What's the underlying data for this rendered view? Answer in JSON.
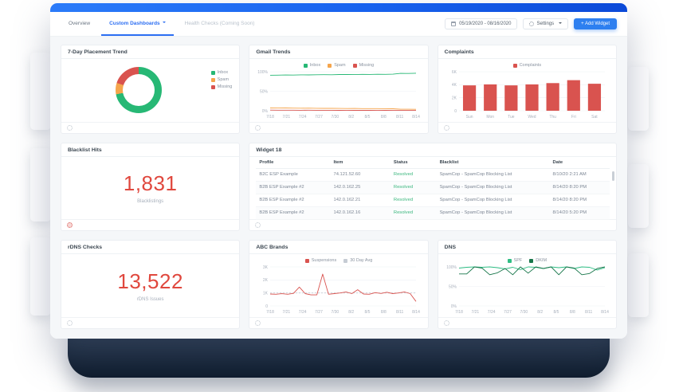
{
  "header": {
    "tabs": [
      {
        "label": "Overview",
        "active": false
      },
      {
        "label": "Custom Dashboards",
        "active": true,
        "has_dropdown": true
      },
      {
        "label": "Health Checks (Coming Soon)",
        "active": false
      }
    ],
    "date_range": "05/19/2020 - 08/16/2020",
    "settings_label": "Settings",
    "add_widget_label": "+ Add Widget"
  },
  "colors": {
    "brand_blue": "#1862ee",
    "button_blue": "#2d7ff0",
    "red": "#d9534f",
    "stat_red": "#e0483e",
    "green": "#27b875",
    "dark_green": "#17764a",
    "orange": "#f5a54c",
    "status_green": "#3bb77e"
  },
  "widgets": {
    "placement": {
      "title": "7-Day Placement Trend",
      "legend": [
        {
          "label": "Inbox",
          "color": "#27b875"
        },
        {
          "label": "Spam",
          "color": "#f5a54c"
        },
        {
          "label": "Missing",
          "color": "#d9534f"
        }
      ],
      "chart": {
        "type": "donut",
        "slices": [
          {
            "label": "Inbox",
            "value": 72,
            "color": "#27b875"
          },
          {
            "label": "Spam",
            "value": 8,
            "color": "#f5a54c"
          },
          {
            "label": "Missing",
            "value": 20,
            "color": "#d9534f"
          }
        ]
      }
    },
    "gmail": {
      "title": "Gmail Trends",
      "legend": [
        {
          "label": "Inbox",
          "color": "#27b875"
        },
        {
          "label": "Spam",
          "color": "#f5a54c"
        },
        {
          "label": "Missing",
          "color": "#d9534f"
        }
      ],
      "chart": {
        "type": "line",
        "x_labels": [
          "7/18",
          "7/21",
          "7/24",
          "7/27",
          "7/30",
          "8/2",
          "8/5",
          "8/8",
          "8/11",
          "8/14"
        ],
        "yticks": [
          "100%",
          "50%",
          "0%"
        ],
        "ylim": [
          0,
          100
        ],
        "series": [
          {
            "name": "Inbox",
            "color": "#27b875",
            "values": [
              91,
              91.3,
              91.6,
              91.4,
              92,
              91.8,
              92.2,
              92.5,
              92.3,
              92.8,
              93,
              92.7,
              93.2,
              93,
              93.4,
              93.2,
              93.6,
              95.8,
              95.5,
              96.2
            ]
          },
          {
            "name": "Spam",
            "color": "#f5a54c",
            "values": [
              7.2,
              7,
              7.1,
              6.8,
              6.6,
              6.8,
              6.4,
              6.2,
              6.3,
              6,
              5.8,
              6,
              5.6,
              5.5,
              5.6,
              5.3,
              5.2,
              3.8,
              3.9,
              3.6
            ]
          },
          {
            "name": "Missing",
            "color": "#d9534f",
            "values": [
              1.6,
              1.5,
              1.4,
              1.5,
              1.3,
              1.4,
              1.2,
              1.3,
              1.2,
              1.1,
              1.2,
              1,
              1.1,
              1,
              0.9,
              1,
              0.9,
              0.8,
              0.9,
              0.8
            ]
          }
        ]
      }
    },
    "complaints": {
      "title": "Complaints",
      "legend": [
        {
          "label": "Complaints",
          "color": "#d9534f"
        }
      ],
      "chart": {
        "type": "bar",
        "categories": [
          "Sun",
          "Mon",
          "Tue",
          "Wed",
          "Thu",
          "Fri",
          "Sat"
        ],
        "yticks": [
          "6K",
          "4K",
          "2K",
          "0"
        ],
        "ylim": [
          0,
          6
        ],
        "color": "#d9534f",
        "values": [
          3.9,
          4.05,
          3.9,
          4.05,
          4.25,
          4.7,
          4.15
        ]
      }
    },
    "blacklist": {
      "title": "Blacklist Hits",
      "value": "1,831",
      "label": "Blacklistings"
    },
    "table": {
      "title": "Widget 18",
      "columns": [
        "Profile",
        "Item",
        "Status",
        "Blacklist",
        "Date"
      ],
      "rows": [
        [
          "B2C ESP Example",
          "74.121.52.60",
          "Resolved",
          "SpamCop - SpamCop Blocking List",
          "8/10/20 2:21 AM"
        ],
        [
          "B2B ESP Example #2",
          "142.0.162.25",
          "Resolved",
          "SpamCop - SpamCop Blocking List",
          "8/14/20 8:20 PM"
        ],
        [
          "B2B ESP Example #2",
          "142.0.162.21",
          "Resolved",
          "SpamCop - SpamCop Blocking List",
          "8/14/20 8:20 PM"
        ],
        [
          "B2B ESP Example #2",
          "142.0.162.16",
          "Resolved",
          "SpamCop - SpamCop Blocking List",
          "8/14/20 5:20 PM"
        ]
      ]
    },
    "rdns": {
      "title": "rDNS Checks",
      "value": "13,522",
      "label": "rDNS Issues"
    },
    "abc": {
      "title": "ABC Brands",
      "legend": [
        {
          "label": "Suspensions",
          "color": "#d9534f"
        },
        {
          "label": "30 Day Avg",
          "color": "#c6ccd4"
        }
      ],
      "chart": {
        "type": "line",
        "x_labels": [
          "7/18",
          "7/21",
          "7/24",
          "7/27",
          "7/30",
          "8/2",
          "8/5",
          "8/8",
          "8/11",
          "8/14"
        ],
        "yticks": [
          "3K",
          "2K",
          "1K",
          "0"
        ],
        "ylim": [
          0,
          3
        ],
        "series": [
          {
            "name": "30 Day Avg",
            "color": "#c6ccd4",
            "dash": true,
            "values": [
              1.0,
              1.0
            ]
          },
          {
            "name": "Suspensions",
            "color": "#d9534f",
            "values": [
              0.92,
              0.9,
              0.94,
              0.9,
              0.97,
              1.45,
              0.95,
              0.85,
              0.86,
              2.45,
              0.9,
              0.95,
              1.0,
              1.08,
              0.95,
              1.25,
              0.92,
              0.9,
              1.02,
              0.96,
              1.05,
              0.95,
              1.0,
              1.08,
              0.95,
              0.35
            ]
          }
        ]
      }
    },
    "dns": {
      "title": "DNS",
      "legend": [
        {
          "label": "SPF",
          "color": "#2fbe84"
        },
        {
          "label": "DKIM",
          "color": "#17764a"
        }
      ],
      "chart": {
        "type": "line",
        "x_labels": [
          "7/18",
          "7/21",
          "7/24",
          "7/27",
          "7/30",
          "8/2",
          "8/5",
          "8/8",
          "8/11",
          "8/14"
        ],
        "yticks": [
          "100%",
          "50%",
          "0%"
        ],
        "ylim": [
          0,
          100
        ],
        "series": [
          {
            "name": "SPF",
            "color": "#2fbe84",
            "values": [
              97,
              99,
              100,
              99,
              100,
              98,
              95,
              99,
              93,
              100,
              99,
              96,
              100,
              98,
              100,
              96,
              100,
              99,
              92,
              98
            ]
          },
          {
            "name": "DKIM",
            "color": "#17764a",
            "values": [
              82,
              82,
              100,
              97,
              80,
              85,
              96,
              80,
              100,
              84,
              100,
              96,
              100,
              80,
              100,
              97,
              80,
              83,
              96,
              100
            ]
          }
        ]
      }
    }
  }
}
